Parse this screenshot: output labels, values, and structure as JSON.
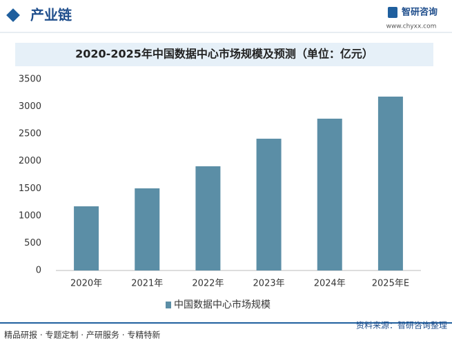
{
  "header": {
    "title": "产业链",
    "brand": "智研咨询",
    "url": "www.chyxx.com"
  },
  "chart_data": {
    "type": "bar",
    "title": "2020-2025年中国数据中心市场规模及预测（单位：亿元）",
    "categories": [
      "2020年",
      "2021年",
      "2022年",
      "2023年",
      "2024年",
      "2025年E"
    ],
    "series": [
      {
        "name": "中国数据中心市场规模",
        "color": "#5b8ea6",
        "values": [
          1175,
          1504,
          1908,
          2413,
          2780,
          3184
        ]
      }
    ],
    "ylim": [
      0,
      3500
    ],
    "yticks": [
      0,
      500,
      1000,
      1500,
      2000,
      2500,
      3000,
      3500
    ],
    "grid": false
  },
  "footer": {
    "services": "精品研报 · 专题定制 · 产研服务 · 专精特新",
    "source": "资料来源：智研咨询整理"
  }
}
